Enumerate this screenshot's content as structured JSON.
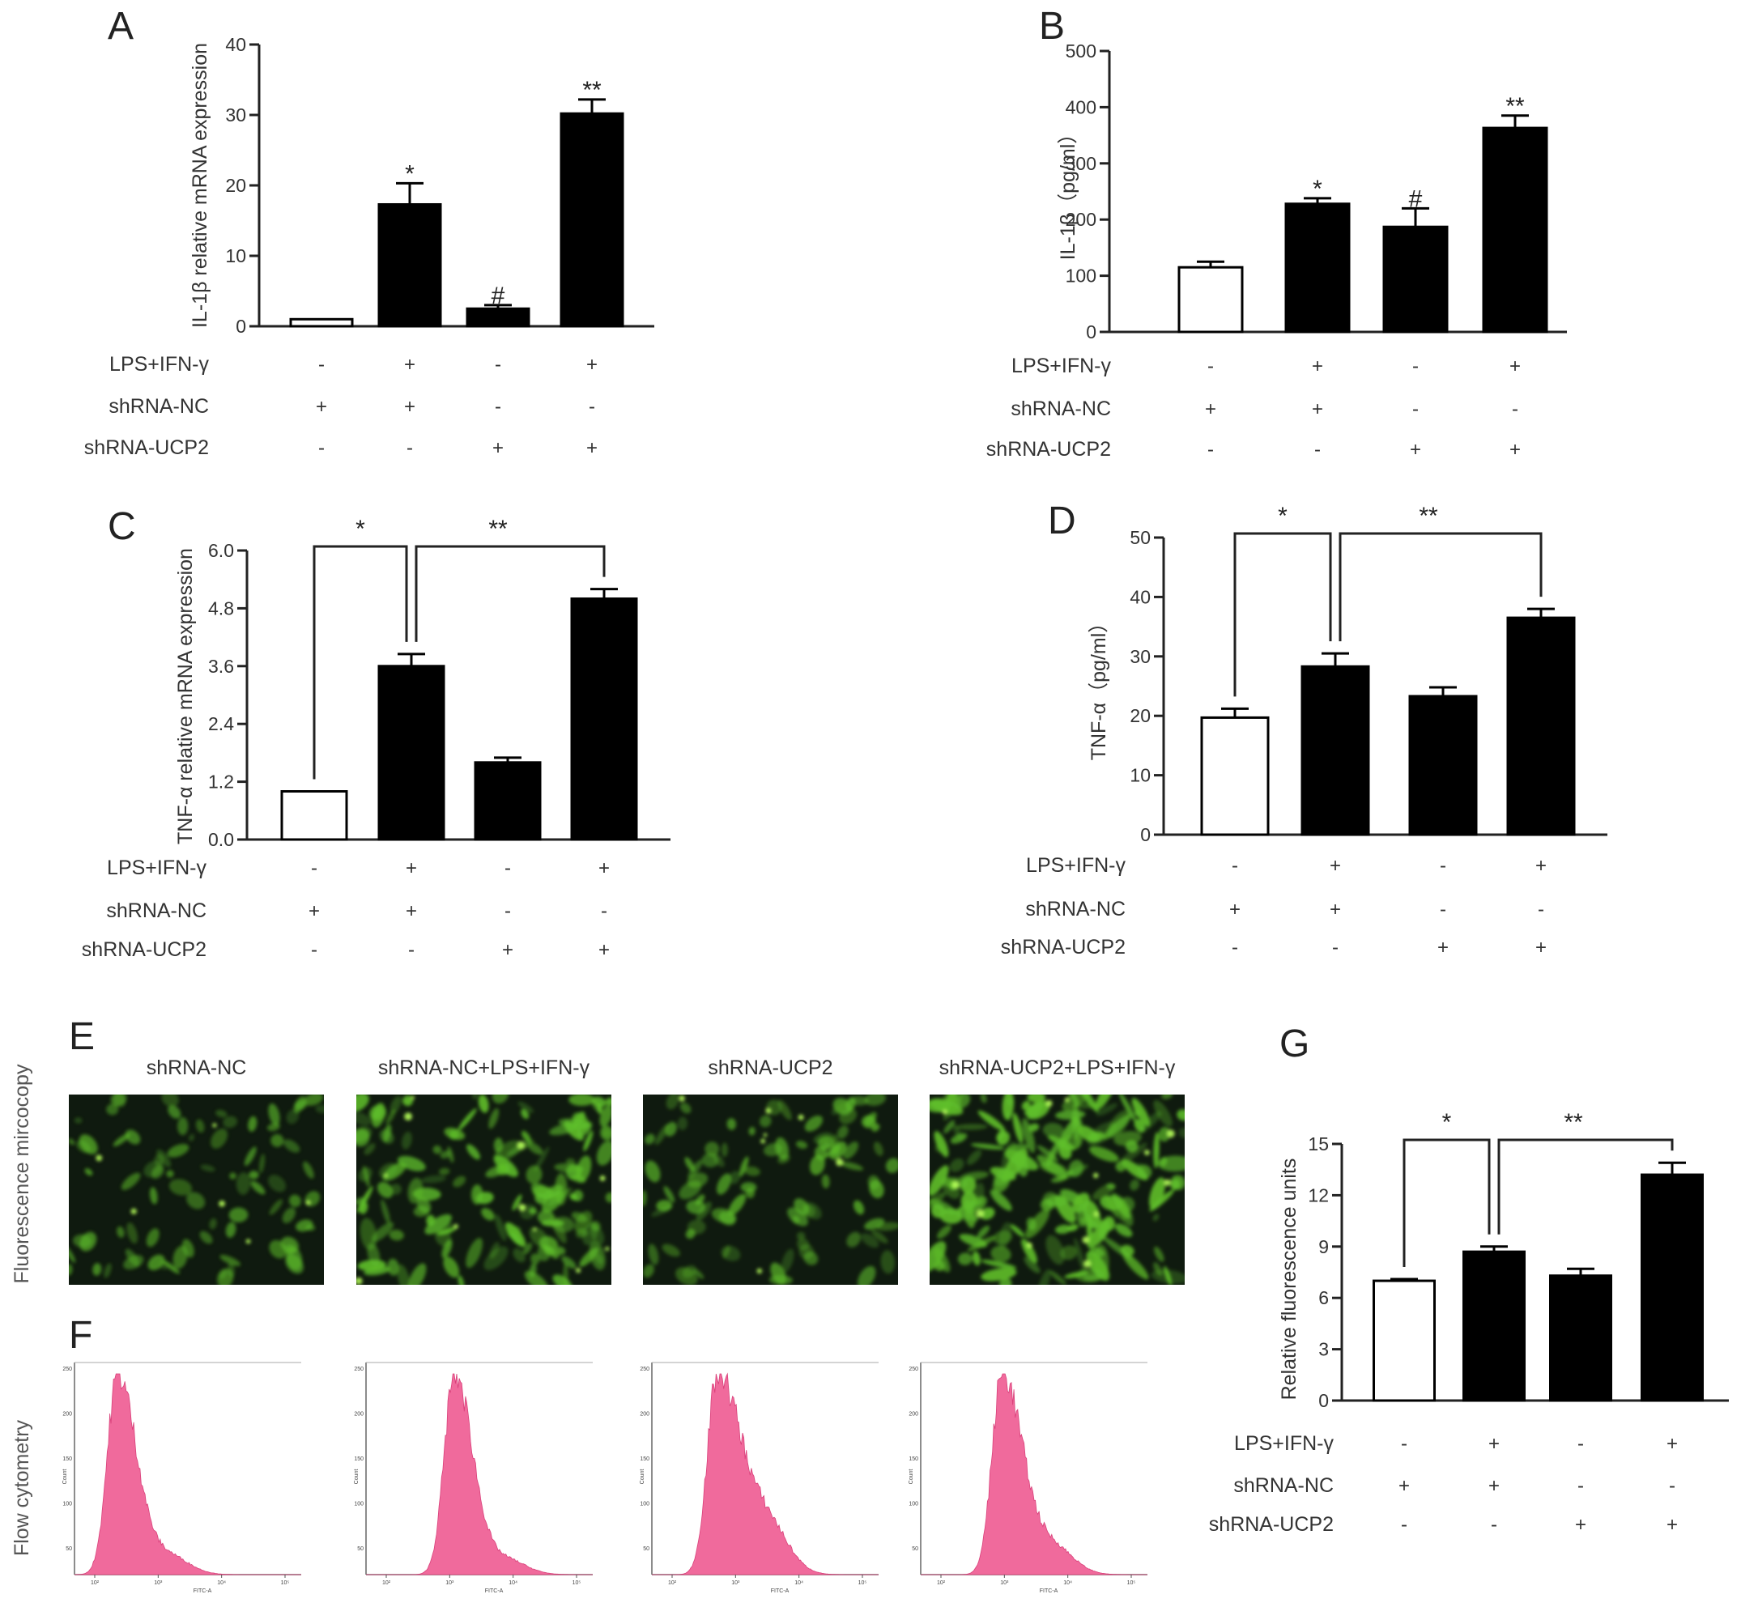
{
  "chart_data": [
    {
      "id": "A",
      "panel": "A",
      "type": "bar",
      "ylabel": "IL-1β relative mRNA expression",
      "ylim": [
        0,
        40
      ],
      "yticks": [
        "0",
        "10",
        "20",
        "30",
        "40"
      ],
      "values": [
        1.0,
        17.3,
        2.5,
        30.2
      ],
      "errors": [
        0.0,
        3.0,
        0.5,
        2.0
      ],
      "fills": [
        "#ffffff",
        "#000000",
        "#000000",
        "#000000"
      ],
      "annotations": [
        "",
        "*",
        "#",
        "**"
      ],
      "brackets": [],
      "conditions": [
        {
          "label": "LPS+IFN-γ",
          "signs": [
            "-",
            "+",
            "-",
            "+"
          ]
        },
        {
          "label": "shRNA-NC",
          "signs": [
            "+",
            "+",
            "-",
            "-"
          ]
        },
        {
          "label": "shRNA-UCP2",
          "signs": [
            "-",
            "-",
            "+",
            "+"
          ]
        }
      ]
    },
    {
      "id": "B",
      "panel": "B",
      "type": "bar",
      "ylabel": "IL-1β（pg/ml）",
      "ylim": [
        0,
        500
      ],
      "yticks": [
        "0",
        "100",
        "200",
        "300",
        "400",
        "500"
      ],
      "values": [
        115,
        228,
        187,
        363
      ],
      "errors": [
        10,
        10,
        33,
        22
      ],
      "fills": [
        "#ffffff",
        "#000000",
        "#000000",
        "#000000"
      ],
      "annotations": [
        "",
        "*",
        "#",
        "**"
      ],
      "brackets": [],
      "conditions": [
        {
          "label": "LPS+IFN-γ",
          "signs": [
            "-",
            "+",
            "-",
            "+"
          ]
        },
        {
          "label": "shRNA-NC",
          "signs": [
            "+",
            "+",
            "-",
            "-"
          ]
        },
        {
          "label": "shRNA-UCP2",
          "signs": [
            "-",
            "-",
            "+",
            "+"
          ]
        }
      ]
    },
    {
      "id": "C",
      "panel": "C",
      "type": "bar",
      "ylabel": "TNF-α relative mRNA expression",
      "ylim": [
        0,
        6
      ],
      "yticks": [
        "0.0",
        "1.2",
        "2.4",
        "3.6",
        "4.8",
        "6.0"
      ],
      "values": [
        1.0,
        3.6,
        1.6,
        5.0
      ],
      "errors": [
        0.0,
        0.25,
        0.1,
        0.2
      ],
      "fills": [
        "#ffffff",
        "#000000",
        "#000000",
        "#000000"
      ],
      "annotations": [
        "",
        "",
        "",
        ""
      ],
      "brackets": [
        {
          "from": 0,
          "to": 1,
          "label": "*"
        },
        {
          "from": 1,
          "to": 3,
          "label": "**"
        }
      ],
      "conditions": [
        {
          "label": "LPS+IFN-γ",
          "signs": [
            "-",
            "+",
            "-",
            "+"
          ]
        },
        {
          "label": "shRNA-NC",
          "signs": [
            "+",
            "+",
            "-",
            "-"
          ]
        },
        {
          "label": "shRNA-UCP2",
          "signs": [
            "-",
            "-",
            "+",
            "+"
          ]
        }
      ]
    },
    {
      "id": "D",
      "panel": "D",
      "type": "bar",
      "ylabel": "TNF-α（pg/ml）",
      "ylim": [
        0,
        50
      ],
      "yticks": [
        "0",
        "10",
        "20",
        "30",
        "40",
        "50"
      ],
      "values": [
        19.7,
        28.3,
        23.3,
        36.5
      ],
      "errors": [
        1.5,
        2.2,
        1.5,
        1.5
      ],
      "fills": [
        "#ffffff",
        "#000000",
        "#000000",
        "#000000"
      ],
      "annotations": [
        "",
        "",
        "",
        ""
      ],
      "brackets": [
        {
          "from": 0,
          "to": 1,
          "label": "*"
        },
        {
          "from": 1,
          "to": 3,
          "label": "**"
        }
      ],
      "conditions": [
        {
          "label": "LPS+IFN-γ",
          "signs": [
            "-",
            "+",
            "-",
            "+"
          ]
        },
        {
          "label": "shRNA-NC",
          "signs": [
            "+",
            "+",
            "-",
            "-"
          ]
        },
        {
          "label": "shRNA-UCP2",
          "signs": [
            "-",
            "-",
            "+",
            "+"
          ]
        }
      ]
    },
    {
      "id": "G",
      "panel": "G",
      "type": "bar",
      "ylabel": "Relative fluorescence units",
      "ylim": [
        0,
        15
      ],
      "yticks": [
        "0",
        "3",
        "6",
        "9",
        "12",
        "15"
      ],
      "values": [
        7.0,
        8.7,
        7.3,
        13.2
      ],
      "errors": [
        0.1,
        0.3,
        0.4,
        0.7
      ],
      "fills": [
        "#ffffff",
        "#000000",
        "#000000",
        "#000000"
      ],
      "annotations": [
        "",
        "",
        "",
        ""
      ],
      "brackets": [
        {
          "from": 0,
          "to": 1,
          "label": "*"
        },
        {
          "from": 1,
          "to": 3,
          "label": "**"
        }
      ],
      "conditions": [
        {
          "label": "LPS+IFN-γ",
          "signs": [
            "-",
            "+",
            "-",
            "+"
          ]
        },
        {
          "label": "shRNA-NC",
          "signs": [
            "+",
            "+",
            "-",
            "-"
          ]
        },
        {
          "label": "shRNA-UCP2",
          "signs": [
            "-",
            "-",
            "+",
            "+"
          ]
        }
      ]
    }
  ],
  "micro": {
    "panel": "E",
    "row_label": "Fluorescence mircocopy",
    "titles": [
      "shRNA-NC",
      "shRNA-NC+LPS+IFN-γ",
      "shRNA-UCP2",
      "shRNA-UCP2+LPS+IFN-γ"
    ],
    "cell_density": [
      0.3,
      0.75,
      0.4,
      1.0
    ],
    "colors": {
      "background": "#0f1a0f",
      "cell": "#5fbf2a",
      "cell_bright": "#b6ff5a"
    }
  },
  "flow": {
    "panel": "F",
    "row_label": "Flow cytometry",
    "y_axis_label": "Count",
    "x_axis_label": "FITC-A",
    "x_ticks": [
      "10²",
      "10³",
      "10⁴",
      "10⁵"
    ],
    "y_ticks": [
      "50",
      "100",
      "150",
      "200",
      "250"
    ],
    "color": "#f06a9c",
    "peak_positions": [
      0.19,
      0.39,
      0.29,
      0.36
    ],
    "tail_weight": [
      0.15,
      0.12,
      0.38,
      0.22
    ]
  }
}
